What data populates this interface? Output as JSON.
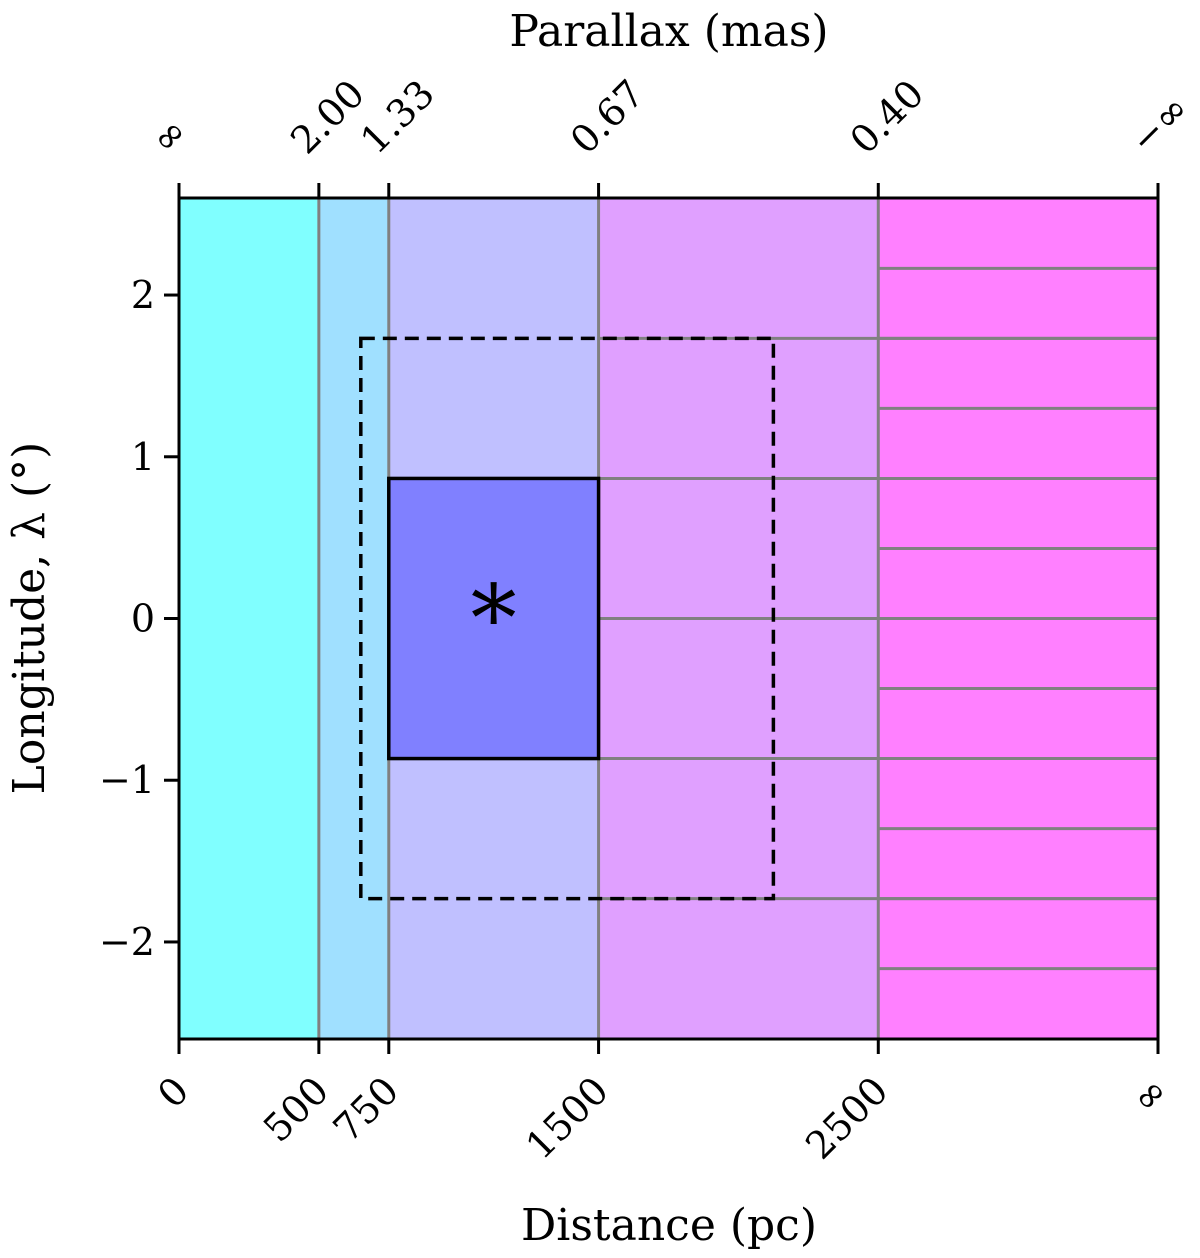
{
  "chart_data": {
    "type": "heatmap",
    "xlabel": "Distance (pc)",
    "x2label": "Parallax (mas)",
    "ylabel": "Longitude, λ (°)",
    "x_ticks": [
      {
        "value": 0,
        "label": "0"
      },
      {
        "value": 500,
        "label": "500"
      },
      {
        "value": 750,
        "label": "750"
      },
      {
        "value": 1500,
        "label": "1500"
      },
      {
        "value": 2500,
        "label": "2500"
      },
      {
        "value": 3500,
        "label": "∞"
      }
    ],
    "x2_ticks": [
      {
        "value": 0,
        "label": "∞"
      },
      {
        "value": 500,
        "label": "2.00"
      },
      {
        "value": 750,
        "label": "1.33"
      },
      {
        "value": 1500,
        "label": "0.67"
      },
      {
        "value": 2500,
        "label": "0.40"
      },
      {
        "value": 3500,
        "label": "−∞"
      }
    ],
    "y_ticks": [
      {
        "value": 2,
        "label": "2"
      },
      {
        "value": 1,
        "label": "1"
      },
      {
        "value": 0,
        "label": "0"
      },
      {
        "value": -1,
        "label": "−1"
      },
      {
        "value": -2,
        "label": "−2"
      }
    ],
    "xlim": [
      0,
      3500
    ],
    "ylim": [
      -2.6,
      2.6
    ],
    "bands": [
      {
        "x0": 0,
        "x1": 500,
        "color": "#80ffff",
        "y_edges": []
      },
      {
        "x0": 500,
        "x1": 750,
        "color": "#a0e0ff",
        "y_edges": []
      },
      {
        "x0": 750,
        "x1": 1500,
        "color": "#c0c0ff",
        "y_edges": [
          -0.866,
          0.866
        ]
      },
      {
        "x0": 1500,
        "x1": 2500,
        "color": "#e0a0ff",
        "y_edges": [
          -1.732,
          -0.866,
          0,
          0.866,
          1.732
        ]
      },
      {
        "x0": 2500,
        "x1": 3500,
        "color": "#ff80ff",
        "y_edges": [
          -2.165,
          -1.732,
          -1.299,
          -0.866,
          -0.433,
          0,
          0.433,
          0.866,
          1.299,
          1.732,
          2.165
        ]
      }
    ],
    "highlight_cell": {
      "x0": 750,
      "x1": 1500,
      "y0": -0.866,
      "y1": 0.866,
      "color": "#8080ff"
    },
    "dashed_region": {
      "x0": 650,
      "x1": 2125,
      "y0": -1.732,
      "y1": 1.732
    },
    "marker": {
      "x": 1125,
      "y": 0.15,
      "symbol": "∗"
    },
    "grid_color": "#808080"
  }
}
